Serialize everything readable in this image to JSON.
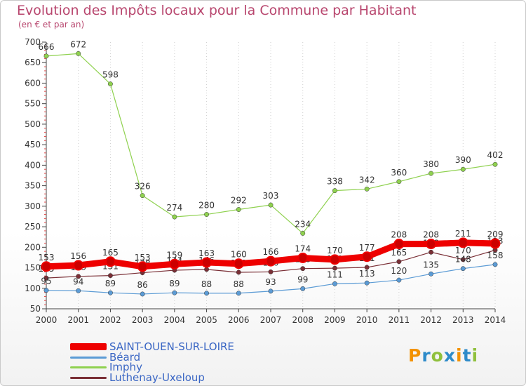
{
  "title": "Evolution des Impôts locaux pour la Commune par Habitant",
  "subtitle": "(en € et par an)",
  "logo": {
    "letters": [
      "P",
      "r",
      "o",
      "x",
      "i",
      "t",
      "i"
    ],
    "colors": [
      "#f39200",
      "#2e8bc9",
      "#8fc03c",
      "#2e8bc9",
      "#f39200",
      "#2e8bc9",
      "#8fc03c"
    ]
  },
  "chart_data": {
    "type": "line",
    "x": [
      "2000",
      "2001",
      "2002",
      "2003",
      "2004",
      "2005",
      "2006",
      "2007",
      "2008",
      "2009",
      "2010",
      "2011",
      "2012",
      "2013",
      "2014"
    ],
    "ylim": [
      50,
      700
    ],
    "yticks": [
      50,
      100,
      150,
      200,
      250,
      300,
      350,
      400,
      450,
      500,
      550,
      600,
      650,
      700
    ],
    "grid": "vertical-dotted",
    "legend": "bottom-left",
    "series": [
      {
        "name": "Imphy",
        "color": "#8fd14f",
        "width": 1.2,
        "values": [
          666,
          672,
          598,
          326,
          274,
          280,
          292,
          303,
          234,
          338,
          342,
          360,
          380,
          390,
          402
        ],
        "labels": [
          "666",
          "672",
          "598",
          "326",
          "274",
          "280",
          "292",
          "303",
          "234",
          "338",
          "342",
          "360",
          "380",
          "390",
          "402"
        ]
      },
      {
        "name": "Luthenay-Uxeloup",
        "color": "#7a2f36",
        "width": 1.2,
        "values": [
          125,
          129,
          131,
          138,
          144,
          146,
          139,
          140,
          148,
          149,
          151,
          165,
          188,
          170,
          193
        ],
        "labels": [
          "125",
          "129",
          "131",
          "138",
          "144",
          "146",
          "139",
          "140",
          "148",
          "149",
          "151",
          "165",
          "188",
          "170",
          "193"
        ]
      },
      {
        "name": "Béard",
        "color": "#5b9bd5",
        "width": 1.2,
        "values": [
          95,
          94,
          89,
          86,
          89,
          88,
          88,
          93,
          99,
          111,
          113,
          120,
          135,
          148,
          158
        ],
        "labels": [
          "95",
          "94",
          "89",
          "86",
          "89",
          "88",
          "88",
          "93",
          "99",
          "111",
          "113",
          "120",
          "135",
          "148",
          "158"
        ]
      },
      {
        "name": "SAINT-OUEN-SUR-LOIRE",
        "color": "#ee0000",
        "width": 9,
        "values": [
          153,
          156,
          165,
          153,
          159,
          163,
          160,
          166,
          174,
          170,
          177,
          208,
          208,
          211,
          209
        ],
        "labels": [
          "153",
          "156",
          "165",
          "153",
          "159",
          "163",
          "160",
          "166",
          "174",
          "170",
          "177",
          "208",
          "208",
          "211",
          "209"
        ]
      }
    ],
    "legend_order": [
      "SAINT-OUEN-SUR-LOIRE",
      "Béard",
      "Imphy",
      "Luthenay-Uxeloup"
    ]
  }
}
